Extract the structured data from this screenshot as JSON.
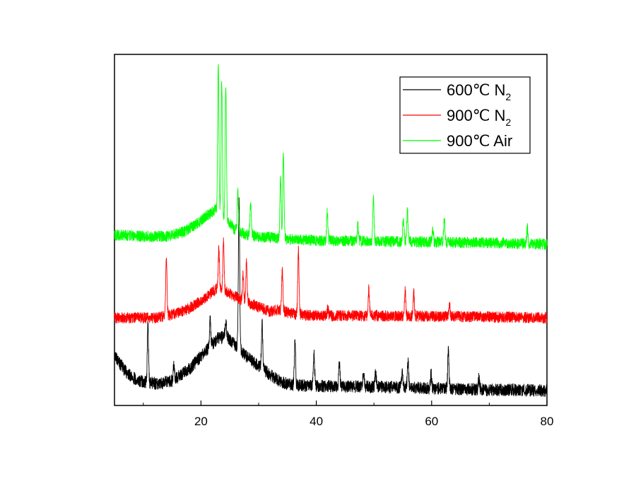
{
  "chart_data": {
    "type": "line",
    "title": "",
    "xlabel": "",
    "ylabel": "",
    "xlim": [
      5,
      80
    ],
    "x_ticks": [
      20,
      40,
      60,
      80
    ],
    "x_tick_labels": [
      "20",
      "40",
      "60",
      "80"
    ],
    "y_axis_labels_shown": false,
    "grid": false,
    "legend_position": "top-right",
    "series": [
      {
        "name": "600℃ N2",
        "label_main": "600℃ N",
        "label_sub": "2",
        "color": "#000000",
        "profile": [
          [
            5,
            0.25
          ],
          [
            7,
            0.14
          ],
          [
            9,
            0.08
          ],
          [
            12,
            0.06
          ],
          [
            15,
            0.08
          ],
          [
            18,
            0.16
          ],
          [
            21,
            0.29
          ],
          [
            23,
            0.37
          ],
          [
            24.5,
            0.38
          ],
          [
            26,
            0.32
          ],
          [
            28,
            0.24
          ],
          [
            30,
            0.18
          ],
          [
            32,
            0.12
          ],
          [
            34,
            0.07
          ],
          [
            36,
            0.05
          ],
          [
            40,
            0.045
          ],
          [
            50,
            0.04
          ],
          [
            60,
            0.03
          ],
          [
            70,
            0.02
          ],
          [
            80,
            0.015
          ]
        ],
        "peaks": [
          [
            10.8,
            0.38
          ],
          [
            15.3,
            0.1
          ],
          [
            21.6,
            0.18
          ],
          [
            24.3,
            0.1
          ],
          [
            26.6,
            1.0
          ],
          [
            30.6,
            0.3
          ],
          [
            36.3,
            0.3
          ],
          [
            39.6,
            0.22
          ],
          [
            44.0,
            0.15
          ],
          [
            48.2,
            0.1
          ],
          [
            50.3,
            0.1
          ],
          [
            54.9,
            0.1
          ],
          [
            55.9,
            0.18
          ],
          [
            59.9,
            0.1
          ],
          [
            62.9,
            0.25
          ],
          [
            68.2,
            0.07
          ]
        ]
      },
      {
        "name": "900℃ N2",
        "label_main": "900℃ N",
        "label_sub": "2",
        "color": "#ff0000",
        "profile": [
          [
            5,
            0.0
          ],
          [
            8,
            0.0
          ],
          [
            12,
            0.0
          ],
          [
            15,
            0.03
          ],
          [
            18,
            0.09
          ],
          [
            21,
            0.2
          ],
          [
            23,
            0.29
          ],
          [
            25,
            0.23
          ],
          [
            27,
            0.17
          ],
          [
            30,
            0.1
          ],
          [
            32,
            0.06
          ],
          [
            33.5,
            0.08
          ],
          [
            35,
            0.05
          ],
          [
            37,
            0.03
          ],
          [
            40,
            0.02
          ],
          [
            50,
            0.02
          ],
          [
            60,
            0.015
          ],
          [
            70,
            0.01
          ],
          [
            80,
            0.0
          ]
        ],
        "peaks": [
          [
            14.0,
            0.55
          ],
          [
            23.1,
            0.35
          ],
          [
            23.9,
            0.45
          ],
          [
            27.3,
            0.25
          ],
          [
            27.9,
            0.38
          ],
          [
            34.1,
            0.38
          ],
          [
            36.9,
            0.6
          ],
          [
            42.0,
            0.07
          ],
          [
            49.1,
            0.25
          ],
          [
            55.4,
            0.25
          ],
          [
            56.9,
            0.22
          ],
          [
            63.1,
            0.1
          ]
        ]
      },
      {
        "name": "900℃ Air",
        "label_main": "900℃ Air",
        "label_sub": "",
        "color": "#00ff00",
        "profile": [
          [
            5,
            0.06
          ],
          [
            10,
            0.05
          ],
          [
            14,
            0.05
          ],
          [
            17,
            0.08
          ],
          [
            19,
            0.12
          ],
          [
            21,
            0.18
          ],
          [
            22.5,
            0.22
          ],
          [
            24,
            0.17
          ],
          [
            26,
            0.09
          ],
          [
            28,
            0.06
          ],
          [
            30,
            0.05
          ],
          [
            33,
            0.04
          ],
          [
            36,
            0.03
          ],
          [
            40,
            0.025
          ],
          [
            50,
            0.02
          ],
          [
            60,
            0.015
          ],
          [
            70,
            0.01
          ],
          [
            80,
            0.0
          ]
        ],
        "peaks": [
          [
            23.0,
            0.95
          ],
          [
            23.6,
            0.85
          ],
          [
            24.3,
            0.85
          ],
          [
            26.4,
            0.25
          ],
          [
            28.6,
            0.2
          ],
          [
            33.8,
            0.38
          ],
          [
            34.3,
            0.55
          ],
          [
            41.9,
            0.18
          ],
          [
            47.2,
            0.1
          ],
          [
            49.9,
            0.27
          ],
          [
            55.1,
            0.15
          ],
          [
            55.8,
            0.2
          ],
          [
            60.2,
            0.08
          ],
          [
            62.2,
            0.15
          ],
          [
            76.6,
            0.1
          ]
        ]
      }
    ]
  }
}
